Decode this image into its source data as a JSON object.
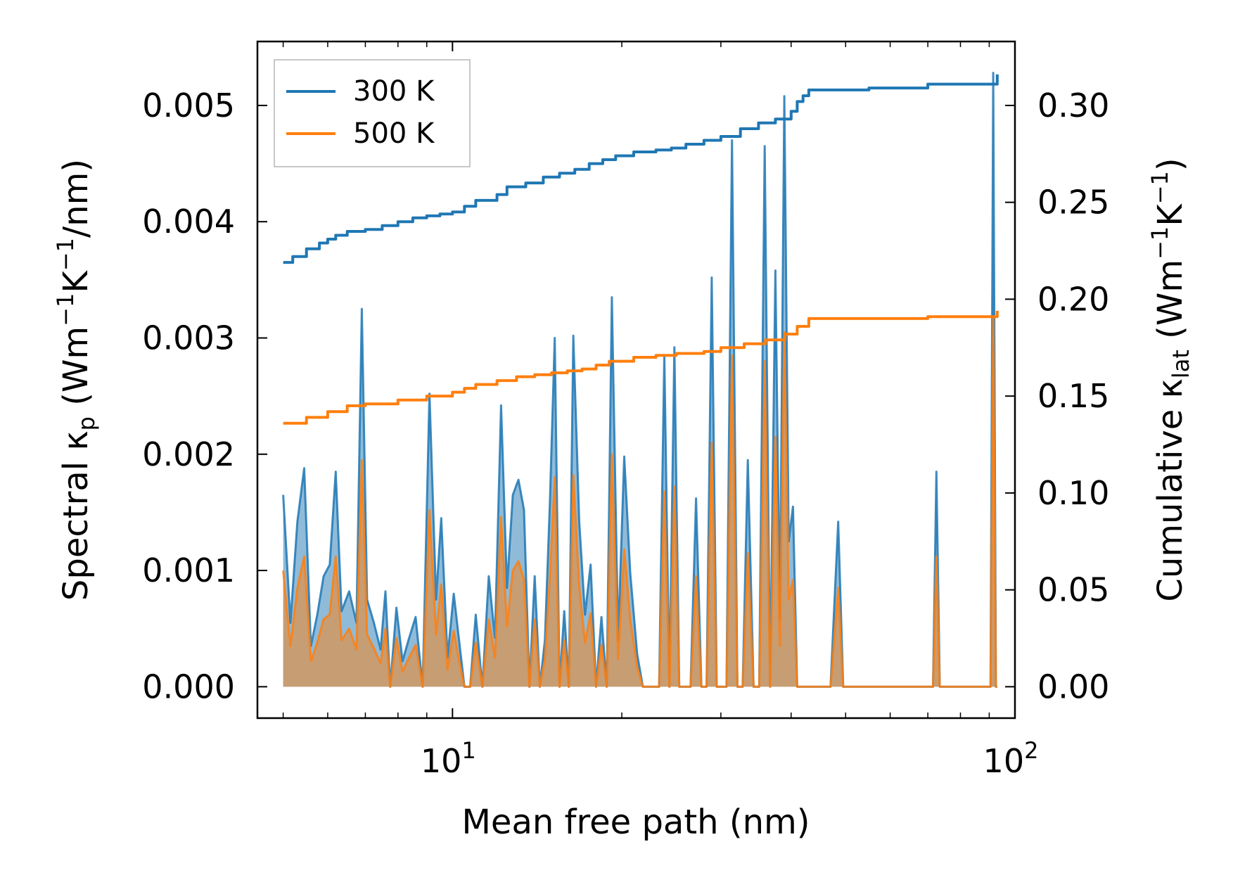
{
  "chart_data": {
    "type": "line",
    "title": "",
    "xlabel": "Mean free path (nm)",
    "ylabel_left": "Spectral κp (Wm−1K−1/nm)",
    "ylabel_right": "Cumulative κlat (Wm−1K−1)",
    "xscale": "log",
    "xlim": [
      4.5,
      100
    ],
    "ylim_left": [
      -0.00027,
      0.00555
    ],
    "ylim_right": [
      -0.0162,
      0.333
    ],
    "x_ticks": [
      {
        "value": 10,
        "base": "10",
        "exp": "1"
      },
      {
        "value": 100,
        "base": "10",
        "exp": "2"
      }
    ],
    "y_ticks_left": [
      {
        "value": 0.0,
        "label": "0.000"
      },
      {
        "value": 0.001,
        "label": "0.001"
      },
      {
        "value": 0.002,
        "label": "0.002"
      },
      {
        "value": 0.003,
        "label": "0.003"
      },
      {
        "value": 0.004,
        "label": "0.004"
      },
      {
        "value": 0.005,
        "label": "0.005"
      }
    ],
    "y_ticks_right": [
      {
        "value": 0.0,
        "label": "0.00"
      },
      {
        "value": 0.05,
        "label": "0.05"
      },
      {
        "value": 0.1,
        "label": "0.10"
      },
      {
        "value": 0.15,
        "label": "0.15"
      },
      {
        "value": 0.2,
        "label": "0.20"
      },
      {
        "value": 0.25,
        "label": "0.25"
      },
      {
        "value": 0.3,
        "label": "0.30"
      }
    ],
    "legend": {
      "position": "upper-left",
      "entries": [
        "300 K",
        "500 K"
      ]
    },
    "colors": {
      "300 K": "#1f77b4",
      "500 K": "#ff7f0e"
    },
    "series": [
      {
        "name": "300 K",
        "axis": "right",
        "kind": "cumulative",
        "x": [
          5.0,
          5.2,
          5.5,
          5.8,
          6.0,
          6.2,
          6.5,
          7.0,
          7.5,
          8.0,
          8.5,
          9.0,
          9.5,
          10.0,
          10.5,
          11.0,
          12.0,
          12.5,
          13.5,
          14.5,
          15.5,
          16.5,
          17.5,
          18.5,
          19.5,
          21.0,
          23.0,
          24.5,
          26.0,
          28.0,
          30.0,
          32.5,
          35.0,
          37.5,
          40.0,
          41.0,
          42.0,
          43.0,
          50.0,
          55.0,
          70.0,
          90.0,
          93.0
        ],
        "values": [
          0.219,
          0.222,
          0.226,
          0.229,
          0.231,
          0.233,
          0.235,
          0.236,
          0.238,
          0.24,
          0.242,
          0.243,
          0.244,
          0.245,
          0.248,
          0.251,
          0.254,
          0.258,
          0.26,
          0.263,
          0.265,
          0.267,
          0.27,
          0.272,
          0.274,
          0.276,
          0.277,
          0.278,
          0.28,
          0.282,
          0.284,
          0.288,
          0.291,
          0.293,
          0.297,
          0.302,
          0.305,
          0.308,
          0.308,
          0.309,
          0.311,
          0.311,
          0.316
        ]
      },
      {
        "name": "500 K",
        "axis": "right",
        "kind": "cumulative",
        "x": [
          5.0,
          5.5,
          6.0,
          6.5,
          7.0,
          8.0,
          9.0,
          10.0,
          10.5,
          11.0,
          12.0,
          13.0,
          14.0,
          15.0,
          16.0,
          17.0,
          18.0,
          19.0,
          21.0,
          23.0,
          25.0,
          28.0,
          30.0,
          33.0,
          36.0,
          39.0,
          41.0,
          43.0,
          50.0,
          55.0,
          70.0,
          90.0,
          93.0
        ],
        "values": [
          0.136,
          0.139,
          0.142,
          0.145,
          0.146,
          0.148,
          0.15,
          0.152,
          0.154,
          0.156,
          0.158,
          0.16,
          0.161,
          0.162,
          0.163,
          0.164,
          0.166,
          0.168,
          0.17,
          0.171,
          0.172,
          0.173,
          0.175,
          0.177,
          0.179,
          0.182,
          0.186,
          0.19,
          0.19,
          0.19,
          0.191,
          0.191,
          0.194
        ]
      },
      {
        "name": "300 K",
        "axis": "left",
        "kind": "spectral",
        "x": [
          5.0,
          5.15,
          5.3,
          5.45,
          5.6,
          5.75,
          5.9,
          6.05,
          6.2,
          6.35,
          6.55,
          6.75,
          6.9,
          7.05,
          7.25,
          7.45,
          7.6,
          7.75,
          7.95,
          8.15,
          8.35,
          8.6,
          8.85,
          9.1,
          9.35,
          9.55,
          9.8,
          10.05,
          10.3,
          10.5,
          10.75,
          11.0,
          11.3,
          11.6,
          11.9,
          12.2,
          12.5,
          12.8,
          13.1,
          13.4,
          13.7,
          14.0,
          14.3,
          14.6,
          14.9,
          15.2,
          15.5,
          15.8,
          16.1,
          16.4,
          16.8,
          17.2,
          17.6,
          18.0,
          18.4,
          18.8,
          19.2,
          19.7,
          20.2,
          20.7,
          21.3,
          21.8,
          22.3,
          22.8,
          23.3,
          23.8,
          24.3,
          24.8,
          25.3,
          25.9,
          26.5,
          27.1,
          27.7,
          28.3,
          28.9,
          29.5,
          30.1,
          30.7,
          31.4,
          32.1,
          32.8,
          33.5,
          34.3,
          35.1,
          35.9,
          36.7,
          37.5,
          38.2,
          38.9,
          39.6,
          40.3,
          41.0,
          41.7,
          42.4,
          43.1,
          43.8,
          44.5,
          45.5,
          47.0,
          48.5,
          49.5,
          50.5,
          52.0,
          55.0,
          60.0,
          65.0,
          70.0,
          71.5,
          72.5,
          73.5,
          75.0,
          80.0,
          88.0,
          89.5,
          90.5,
          91.5,
          92.5,
          93.0
        ],
        "values": [
          0.00165,
          0.00055,
          0.00142,
          0.00188,
          0.00035,
          0.00062,
          0.00095,
          0.00105,
          0.00185,
          0.00065,
          0.00082,
          0.00055,
          0.00325,
          0.00075,
          0.00055,
          0.00032,
          0.00082,
          0.0,
          0.00068,
          0.00022,
          0.0004,
          0.0006,
          0.0,
          0.00252,
          0.00075,
          0.00145,
          0.00025,
          0.0008,
          0.00035,
          0.0,
          0.0,
          0.00062,
          0.0,
          0.00095,
          0.00042,
          0.00242,
          0.00085,
          0.00165,
          0.00178,
          0.00152,
          0.0,
          0.00095,
          0.0,
          0.0004,
          0.00158,
          0.003,
          0.0,
          0.00065,
          0.0,
          0.00302,
          0.00142,
          0.00062,
          0.00105,
          0.0,
          0.0006,
          0.0,
          0.00335,
          0.0004,
          0.00198,
          0.00098,
          0.00028,
          0.0,
          0.0,
          0.0,
          0.0,
          0.00285,
          0.0,
          0.00292,
          0.0,
          0.0,
          0.0,
          0.00162,
          0.0,
          0.0,
          0.00352,
          0.0,
          0.0,
          0.0,
          0.0047,
          0.0,
          0.0,
          0.00195,
          0.0,
          0.0,
          0.00465,
          0.0,
          0.00358,
          0.00058,
          0.00508,
          0.00125,
          0.00155,
          0.0,
          0.0,
          0.0,
          0.0,
          0.0,
          0.0,
          0.0,
          0.0,
          0.00142,
          0.0,
          0.0,
          0.0,
          0.0,
          0.0,
          0.0,
          0.0,
          0.0,
          0.00185,
          0.0,
          0.0,
          0.0,
          0.0,
          0.0,
          0.0,
          0.00528,
          0.0,
          0.0
        ]
      },
      {
        "name": "500 K",
        "axis": "left",
        "kind": "spectral",
        "x": [
          5.0,
          5.15,
          5.3,
          5.45,
          5.6,
          5.75,
          5.9,
          6.05,
          6.2,
          6.35,
          6.55,
          6.75,
          6.9,
          7.05,
          7.25,
          7.45,
          7.6,
          7.75,
          7.95,
          8.15,
          8.35,
          8.6,
          8.85,
          9.1,
          9.35,
          9.55,
          9.8,
          10.05,
          10.3,
          10.5,
          10.75,
          11.0,
          11.3,
          11.6,
          11.9,
          12.2,
          12.5,
          12.8,
          13.1,
          13.4,
          13.7,
          14.0,
          14.3,
          14.6,
          14.9,
          15.2,
          15.5,
          15.8,
          16.1,
          16.4,
          16.8,
          17.2,
          17.6,
          18.0,
          18.4,
          18.8,
          19.2,
          19.7,
          20.2,
          20.7,
          21.3,
          21.8,
          22.3,
          22.8,
          23.3,
          23.8,
          24.3,
          24.8,
          25.3,
          25.9,
          26.5,
          27.1,
          27.7,
          28.3,
          28.9,
          29.5,
          30.1,
          30.7,
          31.4,
          32.1,
          32.8,
          33.5,
          34.3,
          35.1,
          35.9,
          36.7,
          37.5,
          38.2,
          38.9,
          39.6,
          40.3,
          41.0,
          41.7,
          42.4,
          43.1,
          43.8,
          44.5,
          45.5,
          47.0,
          48.5,
          49.5,
          50.5,
          52.0,
          55.0,
          60.0,
          65.0,
          70.0,
          71.5,
          72.5,
          73.5,
          75.0,
          80.0,
          88.0,
          89.5,
          90.5,
          91.5,
          92.5,
          93.0
        ],
        "values": [
          0.001,
          0.00035,
          0.00085,
          0.00112,
          0.00022,
          0.00038,
          0.00058,
          0.00062,
          0.00112,
          0.0004,
          0.0005,
          0.00032,
          0.00195,
          0.00045,
          0.00033,
          0.0002,
          0.0005,
          0.0,
          0.00042,
          0.00013,
          0.00024,
          0.00036,
          0.0,
          0.00152,
          0.00045,
          0.00088,
          0.00015,
          0.00048,
          0.0002,
          0.0,
          0.0,
          0.00038,
          0.0,
          0.00058,
          0.00025,
          0.00146,
          0.00052,
          0.001,
          0.00108,
          0.00092,
          0.0,
          0.00058,
          0.0,
          0.00024,
          0.00095,
          0.0018,
          0.0,
          0.0004,
          0.0,
          0.00182,
          0.00086,
          0.00038,
          0.00063,
          0.0,
          0.00036,
          0.0,
          0.002,
          0.00024,
          0.00118,
          0.00058,
          0.00017,
          0.0,
          0.0,
          0.0,
          0.0,
          0.00168,
          0.0,
          0.00172,
          0.0,
          0.0,
          0.0,
          0.00095,
          0.0,
          0.0,
          0.0021,
          0.0,
          0.0,
          0.0,
          0.00285,
          0.0,
          0.0,
          0.00115,
          0.0,
          0.0,
          0.0028,
          0.0,
          0.00215,
          0.00035,
          0.00305,
          0.00075,
          0.00092,
          0.0,
          0.0,
          0.0,
          0.0,
          0.0,
          0.0,
          0.0,
          0.0,
          0.00085,
          0.0,
          0.0,
          0.0,
          0.0,
          0.0,
          0.0,
          0.0,
          0.0,
          0.00112,
          0.0,
          0.0,
          0.0,
          0.0,
          0.0,
          0.0,
          0.00318,
          0.0,
          0.0
        ]
      }
    ]
  }
}
